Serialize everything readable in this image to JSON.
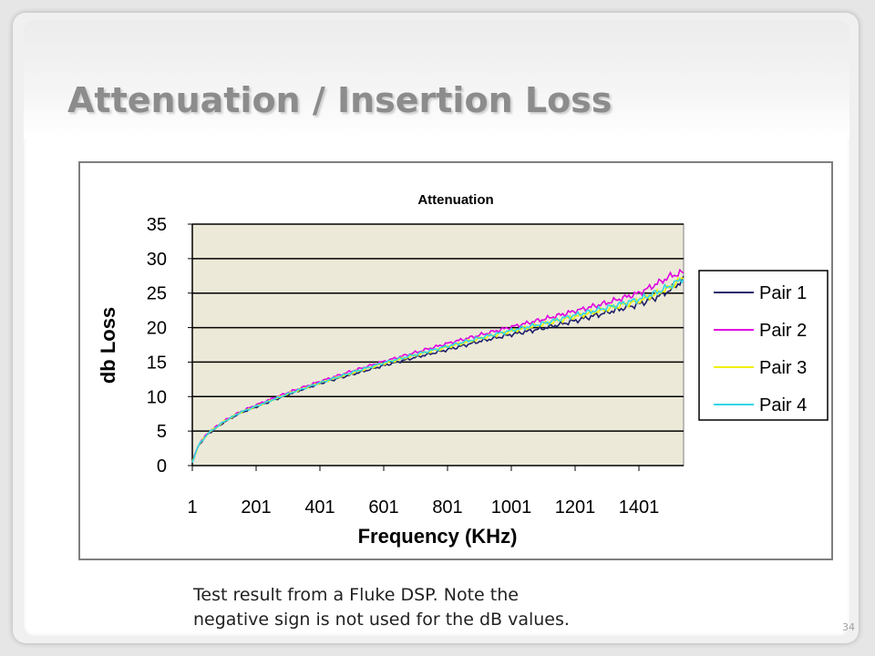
{
  "slide": {
    "title": "Attenuation / Insertion Loss",
    "caption_lines": [
      "Test result from a Fluke DSP.  Note the",
      "negative sign is not used for the dB values."
    ],
    "page_number": "34"
  },
  "chart_data": {
    "type": "line",
    "title": "Attenuation",
    "xlabel": "Frequency (KHz)",
    "ylabel": "db Loss",
    "x_tick_labels": [
      "1",
      "201",
      "401",
      "601",
      "801",
      "1001",
      "1201",
      "1401"
    ],
    "xlim": [
      1,
      1541
    ],
    "ylim": [
      0,
      35
    ],
    "y_ticks": [
      0,
      5,
      10,
      15,
      20,
      25,
      30,
      35
    ],
    "grid": "horizontal",
    "plot_background": "#ece9d8",
    "legend_position": "right",
    "x": [
      1,
      21,
      51,
      101,
      151,
      201,
      301,
      401,
      501,
      601,
      701,
      801,
      901,
      1001,
      1101,
      1201,
      1301,
      1401,
      1451,
      1501,
      1541
    ],
    "series": [
      {
        "name": "Pair 1",
        "color": "#1f1f6b",
        "values": [
          0.5,
          3.0,
          4.6,
          6.3,
          7.6,
          8.5,
          10.3,
          11.9,
          13.2,
          14.5,
          15.7,
          16.8,
          18.0,
          19.0,
          19.9,
          21.0,
          22.2,
          23.4,
          24.3,
          25.5,
          27.0
        ]
      },
      {
        "name": "Pair 2",
        "color": "#e000e0",
        "values": [
          0.5,
          3.1,
          4.8,
          6.5,
          7.8,
          8.8,
          10.6,
          12.2,
          13.7,
          15.1,
          16.4,
          17.7,
          18.9,
          20.1,
          21.2,
          22.4,
          23.6,
          25.0,
          26.2,
          27.5,
          28.0
        ]
      },
      {
        "name": "Pair 3",
        "color": "#f0f000",
        "values": [
          0.5,
          3.0,
          4.7,
          6.4,
          7.7,
          8.6,
          10.4,
          12.0,
          13.4,
          14.8,
          16.0,
          17.2,
          18.4,
          19.5,
          20.5,
          21.6,
          22.7,
          23.9,
          24.8,
          25.9,
          27.3
        ]
      },
      {
        "name": "Pair 4",
        "color": "#33d6e6",
        "values": [
          0.5,
          3.0,
          4.7,
          6.4,
          7.7,
          8.6,
          10.4,
          12.0,
          13.5,
          14.9,
          16.1,
          17.3,
          18.5,
          19.6,
          20.6,
          21.8,
          22.9,
          24.1,
          25.0,
          26.1,
          27.2
        ]
      }
    ]
  }
}
